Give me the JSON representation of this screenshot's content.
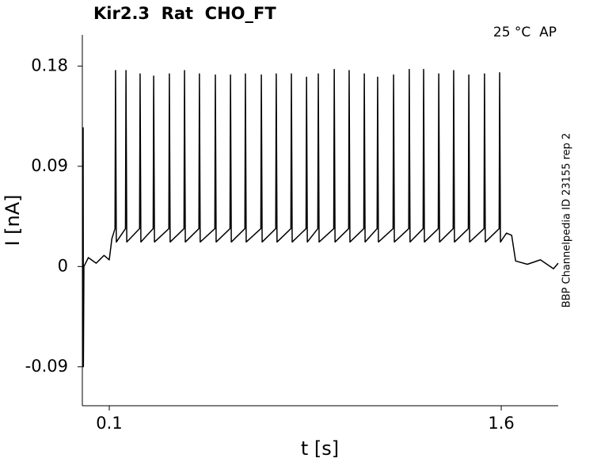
{
  "chart_data": {
    "type": "line",
    "title": "Kir2.3  Rat  CHO_FT",
    "annotation": "25 °C  AP",
    "side_note": "BBP Channelpedia ID 23155 rep 2",
    "xlabel": "t [s]",
    "ylabel": "I [nA]",
    "xlim": [
      -0.003,
      1.818
    ],
    "ylim": [
      -0.125,
      0.208
    ],
    "xticks": [
      0.1,
      1.6
    ],
    "yticks": [
      0.18,
      0.09,
      0,
      -0.09
    ],
    "series": [
      {
        "color": "#000000",
        "x": [
          0,
          0.001,
          0.003,
          0.02,
          0.05,
          0.08,
          0.1,
          0.11,
          0.122,
          0.124,
          0.127,
          0.162,
          0.164,
          0.167,
          0.216,
          0.218,
          0.221,
          0.268,
          0.27,
          0.273,
          0.328,
          0.33,
          0.333,
          0.386,
          0.388,
          0.391,
          0.443,
          0.445,
          0.448,
          0.504,
          0.506,
          0.509,
          0.562,
          0.564,
          0.567,
          0.619,
          0.621,
          0.624,
          0.68,
          0.682,
          0.685,
          0.737,
          0.739,
          0.742,
          0.795,
          0.797,
          0.8,
          0.853,
          0.855,
          0.858,
          0.898,
          0.9,
          0.903,
          0.959,
          0.961,
          0.964,
          1.016,
          1.018,
          1.021,
          1.074,
          1.076,
          1.079,
          1.125,
          1.127,
          1.13,
          1.186,
          1.188,
          1.191,
          1.246,
          1.248,
          1.251,
          1.301,
          1.303,
          1.306,
          1.359,
          1.361,
          1.364,
          1.416,
          1.418,
          1.421,
          1.474,
          1.476,
          1.479,
          1.534,
          1.536,
          1.539,
          1.592,
          1.594,
          1.597,
          1.62,
          1.64,
          1.655,
          1.7,
          1.75,
          1.8,
          1.818
        ],
        "values": [
          0.125,
          -0.09,
          0.0,
          0.008,
          0.003,
          0.01,
          0.006,
          0.025,
          0.034,
          0.176,
          0.022,
          0.034,
          0.176,
          0.022,
          0.034,
          0.173,
          0.022,
          0.034,
          0.171,
          0.022,
          0.034,
          0.173,
          0.022,
          0.034,
          0.176,
          0.022,
          0.034,
          0.173,
          0.022,
          0.034,
          0.172,
          0.022,
          0.034,
          0.172,
          0.022,
          0.034,
          0.173,
          0.022,
          0.034,
          0.172,
          0.022,
          0.034,
          0.173,
          0.022,
          0.034,
          0.173,
          0.022,
          0.034,
          0.17,
          0.022,
          0.034,
          0.173,
          0.022,
          0.034,
          0.177,
          0.022,
          0.034,
          0.176,
          0.022,
          0.034,
          0.173,
          0.022,
          0.034,
          0.17,
          0.022,
          0.034,
          0.172,
          0.022,
          0.034,
          0.177,
          0.022,
          0.034,
          0.177,
          0.022,
          0.034,
          0.173,
          0.022,
          0.034,
          0.176,
          0.022,
          0.034,
          0.172,
          0.022,
          0.034,
          0.173,
          0.022,
          0.034,
          0.174,
          0.022,
          0.03,
          0.028,
          0.005,
          0.002,
          0.006,
          -0.002,
          0.003
        ]
      }
    ]
  }
}
